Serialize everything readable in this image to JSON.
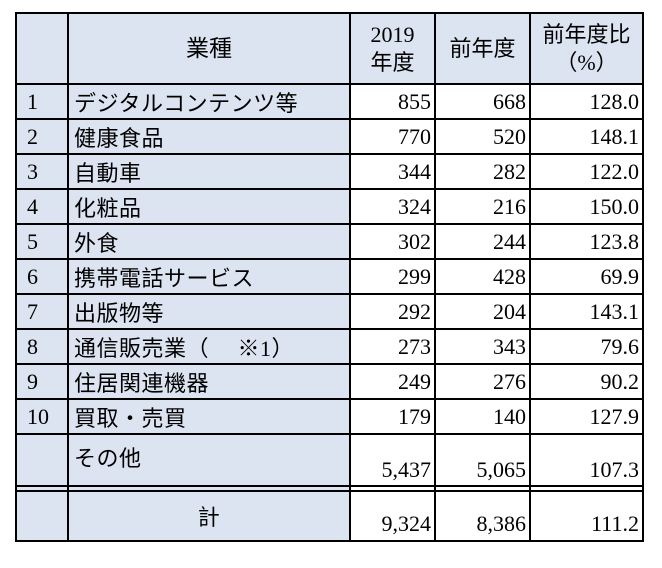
{
  "headers": {
    "name": "業種",
    "y2019_line1": "2019",
    "y2019_line2": "年度",
    "prev": "前年度",
    "ratio_line1": "前年度比",
    "ratio_line2": "（%）"
  },
  "rows": [
    {
      "rank": "1",
      "name": "デジタルコンテンツ等",
      "y2019": "855",
      "prev": "668",
      "ratio": "128.0"
    },
    {
      "rank": "2",
      "name": "健康食品",
      "y2019": "770",
      "prev": "520",
      "ratio": "148.1"
    },
    {
      "rank": "3",
      "name": "自動車",
      "y2019": "344",
      "prev": "282",
      "ratio": "122.0"
    },
    {
      "rank": "4",
      "name": "化粧品",
      "y2019": "324",
      "prev": "216",
      "ratio": "150.0"
    },
    {
      "rank": "5",
      "name": "外食",
      "y2019": "302",
      "prev": "244",
      "ratio": "123.8"
    },
    {
      "rank": "6",
      "name": "携帯電話サービス",
      "y2019": "299",
      "prev": "428",
      "ratio": "69.9"
    },
    {
      "rank": "7",
      "name": "出版物等",
      "y2019": "292",
      "prev": "204",
      "ratio": "143.1"
    },
    {
      "rank": "8",
      "name": "通信販売業（　 ※1）",
      "y2019": "273",
      "prev": "343",
      "ratio": "79.6"
    },
    {
      "rank": "9",
      "name": "住居関連機器",
      "y2019": "249",
      "prev": "276",
      "ratio": "90.2"
    },
    {
      "rank": "10",
      "name": "買取・売買",
      "y2019": "179",
      "prev": "140",
      "ratio": "127.9"
    }
  ],
  "other": {
    "name": "その他",
    "y2019": "5,437",
    "prev": "5,065",
    "ratio": "107.3"
  },
  "total": {
    "name": "計",
    "y2019": "9,324",
    "prev": "8,386",
    "ratio": "111.2"
  }
}
